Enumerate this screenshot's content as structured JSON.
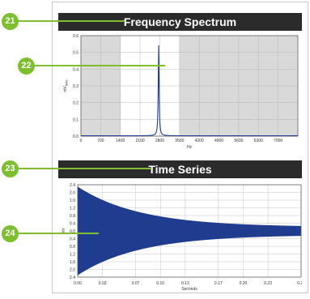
{
  "callouts": {
    "c21": "21",
    "c22": "22",
    "c23": "23",
    "c24": "24"
  },
  "frequency_panel": {
    "title": "Frequency Spectrum"
  },
  "time_panel": {
    "title": "Time Series"
  },
  "colors": {
    "header_bg": "#2b2b2b",
    "callout_green": "#7dbf2f",
    "series_blue": "#1f3c8f",
    "shaded_gray": "#d9d9d9"
  },
  "chart_data": [
    {
      "type": "line",
      "title": "Frequency Spectrum",
      "xlabel": "Hz",
      "ylabel": "mV",
      "ylabel_subscript": "RMS",
      "xlim": [
        0,
        7700
      ],
      "ylim": [
        0,
        0.6
      ],
      "x_ticks": [
        "0",
        "700",
        "1400",
        "2100",
        "2800",
        "3500",
        "4200",
        "4900",
        "5600",
        "6300",
        "7000"
      ],
      "y_ticks": [
        "0.0",
        "0.1",
        "0.2",
        "0.3",
        "0.4",
        "0.5",
        "0.6"
      ],
      "shaded_bands": [
        [
          0,
          1400
        ],
        [
          3500,
          7700
        ]
      ],
      "peak": {
        "x": 2760,
        "y": 0.54
      },
      "baseline": 0.002,
      "grid": true
    },
    {
      "type": "line",
      "title": "Time Series",
      "xlabel": "Seconds",
      "ylabel": "mV",
      "xlim": [
        0,
        0.27
      ],
      "ylim": [
        -2.4,
        2.4
      ],
      "x_ticks": [
        "0.00",
        "0.03",
        "0.07",
        "0.10",
        "0.13",
        "0.17",
        "0.20",
        "0.23",
        "0.27"
      ],
      "y_ticks": [
        "2.4",
        "2.0",
        "1.6",
        "1.2",
        "0.8",
        "0.4",
        "0.0",
        "0.4",
        "0.8",
        "1.2",
        "1.6",
        "2.0",
        "2.4"
      ],
      "envelope": {
        "initial_amplitude": 2.3,
        "final_amplitude": 0.2,
        "decay_time_constant": 0.075
      },
      "grid": true
    }
  ]
}
